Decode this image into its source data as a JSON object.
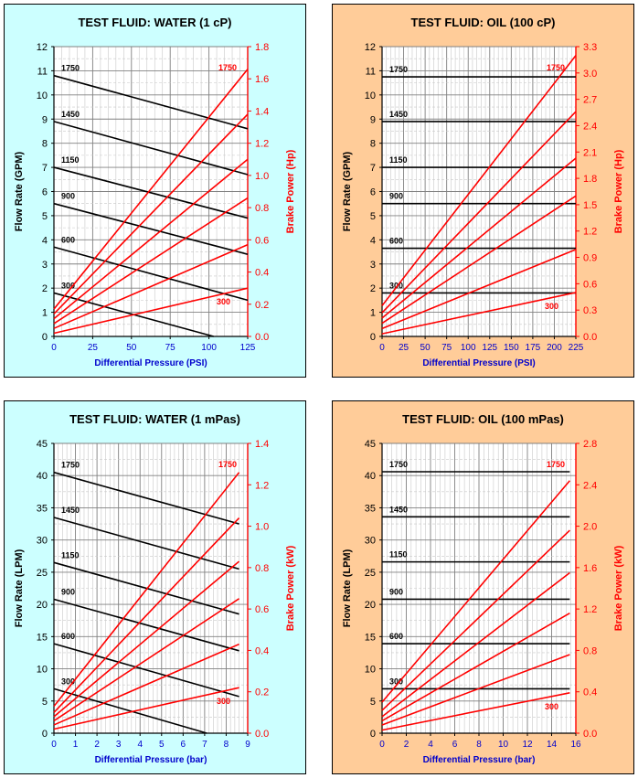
{
  "chart_data": [
    {
      "type": "line",
      "title": "TEST FLUID:  WATER (1 cP)",
      "xlabel": "Differential Pressure (PSI)",
      "ylabel": "Flow Rate (GPM)",
      "y2label": "Brake Power (Hp)",
      "xlim": [
        0,
        125
      ],
      "ylim": [
        0,
        12
      ],
      "y2lim": [
        0,
        1.8
      ],
      "xticks": [
        "0",
        "25",
        "50",
        "75",
        "100",
        "125"
      ],
      "yticks": [
        "0",
        "1",
        "2",
        "3",
        "4",
        "5",
        "6",
        "7",
        "8",
        "9",
        "10",
        "11",
        "12"
      ],
      "y2ticks": [
        "0.0",
        "0.2",
        "0.4",
        "0.6",
        "0.8",
        "1.0",
        "1.2",
        "1.4",
        "1.6",
        "1.8"
      ],
      "background": "#ccffff",
      "flow_series": [
        {
          "name": "1750",
          "x": [
            0,
            125
          ],
          "y": [
            10.8,
            8.6
          ]
        },
        {
          "name": "1450",
          "x": [
            0,
            125
          ],
          "y": [
            8.9,
            6.7
          ]
        },
        {
          "name": "1150",
          "x": [
            0,
            125
          ],
          "y": [
            7.0,
            4.9
          ]
        },
        {
          "name": "900",
          "x": [
            0,
            125
          ],
          "y": [
            5.5,
            3.4
          ]
        },
        {
          "name": "600",
          "x": [
            0,
            125
          ],
          "y": [
            3.7,
            1.5
          ]
        },
        {
          "name": "300",
          "x": [
            0,
            103
          ],
          "y": [
            1.8,
            0
          ]
        }
      ],
      "power_series": [
        {
          "name": "1750",
          "x": [
            0,
            125
          ],
          "y": [
            0.17,
            1.66
          ]
        },
        {
          "name": "",
          "x": [
            0,
            125
          ],
          "y": [
            0.14,
            1.38
          ]
        },
        {
          "name": "",
          "x": [
            0,
            125
          ],
          "y": [
            0.11,
            1.1
          ]
        },
        {
          "name": "",
          "x": [
            0,
            125
          ],
          "y": [
            0.08,
            0.86
          ]
        },
        {
          "name": "",
          "x": [
            0,
            125
          ],
          "y": [
            0.05,
            0.57
          ]
        },
        {
          "name": "300",
          "x": [
            0,
            125
          ],
          "y": [
            0.02,
            0.3
          ]
        }
      ]
    },
    {
      "type": "line",
      "title": "TEST FLUID:  OIL (100 cP)",
      "xlabel": "Differential Pressure (PSI)",
      "ylabel": "Flow Rate (GPM)",
      "y2label": "Brake Power (Hp)",
      "xlim": [
        0,
        225
      ],
      "ylim": [
        0,
        12
      ],
      "y2lim": [
        0,
        3.3
      ],
      "xticks": [
        "0",
        "25",
        "50",
        "75",
        "100",
        "125",
        "150",
        "175",
        "200",
        "225"
      ],
      "yticks": [
        "0",
        "1",
        "2",
        "3",
        "4",
        "5",
        "6",
        "7",
        "8",
        "9",
        "10",
        "11",
        "12"
      ],
      "y2ticks": [
        "0.0",
        "0.3",
        "0.6",
        "0.9",
        "1.2",
        "1.5",
        "1.8",
        "2.1",
        "2.4",
        "2.7",
        "3.0",
        "3.3"
      ],
      "background": "#ffcc99",
      "flow_series": [
        {
          "name": "1750",
          "x": [
            0,
            225
          ],
          "y": [
            10.75,
            10.75
          ]
        },
        {
          "name": "1450",
          "x": [
            0,
            225
          ],
          "y": [
            8.9,
            8.9
          ]
        },
        {
          "name": "1150",
          "x": [
            0,
            225
          ],
          "y": [
            7.0,
            7.0
          ]
        },
        {
          "name": "900",
          "x": [
            0,
            225
          ],
          "y": [
            5.5,
            5.5
          ]
        },
        {
          "name": "600",
          "x": [
            0,
            225
          ],
          "y": [
            3.65,
            3.65
          ]
        },
        {
          "name": "300",
          "x": [
            0,
            225
          ],
          "y": [
            1.8,
            1.8
          ]
        }
      ],
      "power_series": [
        {
          "name": "1750",
          "x": [
            0,
            225
          ],
          "y": [
            0.35,
            3.2
          ]
        },
        {
          "name": "",
          "x": [
            0,
            225
          ],
          "y": [
            0.27,
            2.56
          ]
        },
        {
          "name": "",
          "x": [
            0,
            225
          ],
          "y": [
            0.21,
            2.03
          ]
        },
        {
          "name": "",
          "x": [
            0,
            225
          ],
          "y": [
            0.15,
            1.6
          ]
        },
        {
          "name": "",
          "x": [
            0,
            225
          ],
          "y": [
            0.09,
            0.99
          ]
        },
        {
          "name": "300",
          "x": [
            0,
            225
          ],
          "y": [
            0.03,
            0.5
          ]
        }
      ]
    },
    {
      "type": "line",
      "title": "TEST FLUID:  WATER (1 mPas)",
      "xlabel": "Differential Pressure (bar)",
      "ylabel": "Flow Rate (LPM)",
      "y2label": "Brake Power (kW)",
      "xlim": [
        0,
        9
      ],
      "ylim": [
        0,
        45
      ],
      "y2lim": [
        0,
        1.4
      ],
      "xticks": [
        "0",
        "1",
        "2",
        "3",
        "4",
        "5",
        "6",
        "7",
        "8",
        "9"
      ],
      "yticks": [
        "0",
        "5",
        "10",
        "15",
        "20",
        "25",
        "30",
        "35",
        "40",
        "45"
      ],
      "y2ticks": [
        "0.0",
        "0.2",
        "0.4",
        "0.6",
        "0.8",
        "1.0",
        "1.2",
        "1.4"
      ],
      "background": "#ccffff",
      "flow_series": [
        {
          "name": "1750",
          "x": [
            0,
            8.6
          ],
          "y": [
            40.5,
            32.5
          ]
        },
        {
          "name": "1450",
          "x": [
            0,
            8.6
          ],
          "y": [
            33.5,
            25.5
          ]
        },
        {
          "name": "1150",
          "x": [
            0,
            8.6
          ],
          "y": [
            26.5,
            18.5
          ]
        },
        {
          "name": "900",
          "x": [
            0,
            8.6
          ],
          "y": [
            20.8,
            12.8
          ]
        },
        {
          "name": "600",
          "x": [
            0,
            8.6
          ],
          "y": [
            13.9,
            5.7
          ]
        },
        {
          "name": "300",
          "x": [
            0,
            7.1
          ],
          "y": [
            6.9,
            0
          ]
        }
      ],
      "power_series": [
        {
          "name": "1750",
          "x": [
            0,
            8.6
          ],
          "y": [
            0.13,
            1.26
          ]
        },
        {
          "name": "",
          "x": [
            0,
            8.6
          ],
          "y": [
            0.1,
            1.04
          ]
        },
        {
          "name": "",
          "x": [
            0,
            8.6
          ],
          "y": [
            0.08,
            0.83
          ]
        },
        {
          "name": "",
          "x": [
            0,
            8.6
          ],
          "y": [
            0.06,
            0.65
          ]
        },
        {
          "name": "",
          "x": [
            0,
            8.6
          ],
          "y": [
            0.04,
            0.43
          ]
        },
        {
          "name": "300",
          "x": [
            0,
            8.6
          ],
          "y": [
            0.02,
            0.22
          ]
        }
      ]
    },
    {
      "type": "line",
      "title": "TEST FLUID:  OIL (100 mPas)",
      "xlabel": "Differential Pressure (bar)",
      "ylabel": "Flow Rate (LPM)",
      "y2label": "Brake Power (kW)",
      "xlim": [
        0,
        16
      ],
      "ylim": [
        0,
        45
      ],
      "y2lim": [
        0,
        2.8
      ],
      "xticks": [
        "0",
        "2",
        "4",
        "6",
        "8",
        "10",
        "12",
        "14",
        "16"
      ],
      "yticks": [
        "0",
        "5",
        "10",
        "15",
        "20",
        "25",
        "30",
        "35",
        "40",
        "45"
      ],
      "y2ticks": [
        "0.0",
        "0.4",
        "0.8",
        "1.2",
        "1.6",
        "2.0",
        "2.4",
        "2.8"
      ],
      "background": "#ffcc99",
      "flow_series": [
        {
          "name": "1750",
          "x": [
            0,
            15.5
          ],
          "y": [
            40.6,
            40.6
          ]
        },
        {
          "name": "1450",
          "x": [
            0,
            15.5
          ],
          "y": [
            33.6,
            33.6
          ]
        },
        {
          "name": "1150",
          "x": [
            0,
            15.5
          ],
          "y": [
            26.6,
            26.6
          ]
        },
        {
          "name": "900",
          "x": [
            0,
            15.5
          ],
          "y": [
            20.8,
            20.8
          ]
        },
        {
          "name": "600",
          "x": [
            0,
            15.5
          ],
          "y": [
            13.9,
            13.9
          ]
        },
        {
          "name": "300",
          "x": [
            0,
            15.5
          ],
          "y": [
            6.9,
            6.9
          ]
        }
      ],
      "power_series": [
        {
          "name": "1750",
          "x": [
            0,
            15.5
          ],
          "y": [
            0.3,
            2.44
          ]
        },
        {
          "name": "",
          "x": [
            0,
            15.5
          ],
          "y": [
            0.22,
            1.96
          ]
        },
        {
          "name": "",
          "x": [
            0,
            15.5
          ],
          "y": [
            0.16,
            1.55
          ]
        },
        {
          "name": "",
          "x": [
            0,
            15.5
          ],
          "y": [
            0.12,
            1.16
          ]
        },
        {
          "name": "",
          "x": [
            0,
            15.5
          ],
          "y": [
            0.08,
            0.76
          ]
        },
        {
          "name": "300",
          "x": [
            0,
            15.5
          ],
          "y": [
            0.03,
            0.39
          ]
        }
      ]
    }
  ]
}
